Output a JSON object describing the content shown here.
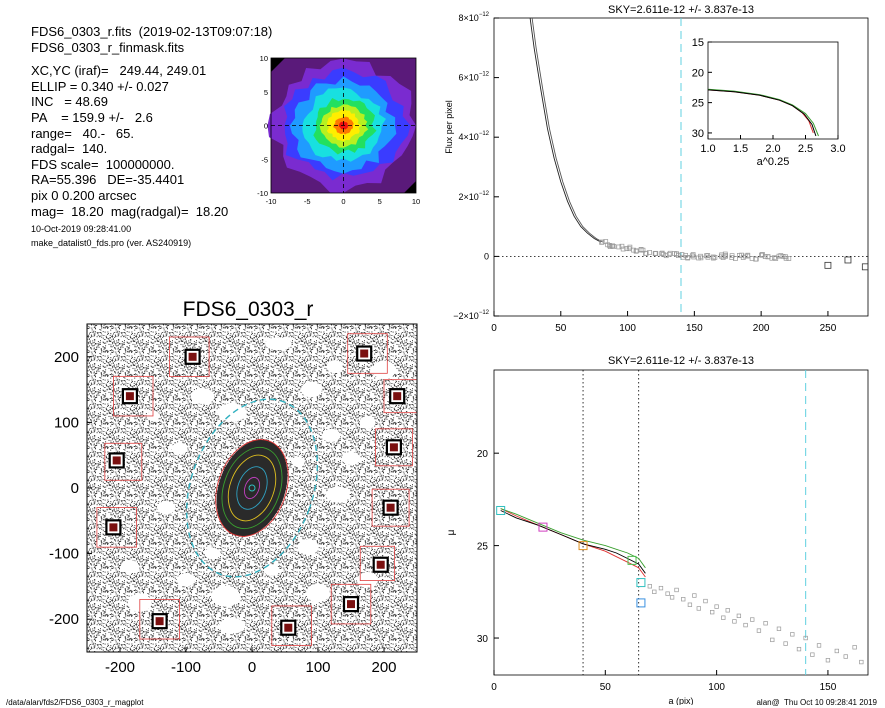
{
  "header": {
    "lines": [
      "FDS6_0303_r.fits  (2019-02-13T09:07:18)",
      "FDS6_0303_r_finmask.fits"
    ],
    "params": [
      "XC,YC (iraf)=   249.44, 249.01",
      "ELLIP = 0.340 +/- 0.027",
      "INC   = 48.69",
      "PA    = 159.9 +/-   2.6",
      "range=   40.-   65.",
      "radgal=  140.",
      "FDS scale=  100000000.",
      "RA=55.396   DE=-35.4401",
      "pix 0 0.200 arcsec",
      "mag=  18.20  mag(radgal)=  18.20"
    ],
    "small": [
      "10-Oct-2019 09:28:41.00",
      "make_datalist0_fds.pro (ver. AS240919)"
    ]
  },
  "footer": {
    "left": "/data/alan/fds2/FDS6_0303_r_magplot",
    "right": "alan@  Thu Oct 10 09:28:41 2019"
  },
  "chart_data": [
    {
      "id": "thumbnail",
      "type": "heatmap",
      "title": "",
      "xlim": [
        -10,
        10
      ],
      "ylim": [
        -10,
        10
      ],
      "xticks": [
        "-10",
        "-5",
        "0",
        "5",
        "10"
      ],
      "yticks": [
        "10",
        "5",
        "0",
        "-5",
        "-10"
      ],
      "levels": [
        {
          "r": 9.5,
          "color": "#7a2bd0"
        },
        {
          "r": 8.2,
          "color": "#3a3cff"
        },
        {
          "r": 6.8,
          "color": "#1f9bff"
        },
        {
          "r": 5.4,
          "color": "#18e0e0"
        },
        {
          "r": 4.1,
          "color": "#22e060"
        },
        {
          "r": 3.1,
          "color": "#b8f020"
        },
        {
          "r": 2.2,
          "color": "#ffee00"
        },
        {
          "r": 1.3,
          "color": "#ff7a00"
        },
        {
          "r": 0.6,
          "color": "#f01010"
        }
      ]
    },
    {
      "id": "image",
      "type": "scatter",
      "title": "FDS6_0303_r",
      "xlim": [
        -250,
        250
      ],
      "ylim": [
        -250,
        250
      ],
      "xticks": [
        "-200",
        "-100",
        "0",
        "100",
        "200"
      ],
      "yticks": [
        "200",
        "100",
        "0",
        "-100",
        "-200"
      ],
      "ellipse": {
        "a": 140,
        "ellip": 0.34,
        "pa": 159.9
      },
      "stars": [
        [
          -90,
          200
        ],
        [
          170,
          205
        ],
        [
          -185,
          140
        ],
        [
          220,
          140
        ],
        [
          -205,
          42
        ],
        [
          215,
          62
        ],
        [
          -210,
          -60
        ],
        [
          210,
          -30
        ],
        [
          195,
          -117
        ],
        [
          150,
          -177
        ],
        [
          -140,
          -203
        ],
        [
          55,
          -213
        ]
      ],
      "masks": [
        [
          -95,
          200,
          30
        ],
        [
          175,
          205,
          30
        ],
        [
          -180,
          140,
          30
        ],
        [
          225,
          140,
          25
        ],
        [
          -195,
          40,
          28
        ],
        [
          215,
          62,
          28
        ],
        [
          -205,
          -60,
          30
        ],
        [
          210,
          -30,
          28
        ],
        [
          190,
          -115,
          26
        ],
        [
          150,
          -177,
          30
        ],
        [
          -140,
          -200,
          30
        ],
        [
          60,
          -210,
          30
        ]
      ]
    },
    {
      "id": "flux",
      "type": "line",
      "title": "SKY=2.611e-12 +/- 3.837e-13",
      "xlabel": "",
      "ylabel": "Flux per pixel",
      "xlim": [
        0,
        280
      ],
      "ylim": [
        -2e-12,
        8e-12
      ],
      "xticks": [
        0,
        50,
        100,
        150,
        200,
        250
      ],
      "yticks": [
        {
          "v": 8e-12,
          "m": "8",
          "e": "−12"
        },
        {
          "v": 6e-12,
          "m": "6",
          "e": "−12"
        },
        {
          "v": 4e-12,
          "m": "4",
          "e": "−12"
        },
        {
          "v": 2e-12,
          "m": "2",
          "e": "−12"
        },
        {
          "v": 0,
          "m": "0",
          "e": ""
        },
        {
          "v": -2e-12,
          "m": "−2",
          "e": "−12"
        }
      ],
      "vline": 140,
      "curve": [
        [
          27,
          8e-12
        ],
        [
          30,
          7e-12
        ],
        [
          35,
          5.6e-12
        ],
        [
          40,
          4.3e-12
        ],
        [
          45,
          3.3e-12
        ],
        [
          50,
          2.5e-12
        ],
        [
          55,
          1.85e-12
        ],
        [
          60,
          1.35e-12
        ],
        [
          65,
          1e-12
        ],
        [
          70,
          7.8e-13
        ],
        [
          75,
          6e-13
        ],
        [
          80,
          4.8e-13
        ]
      ],
      "points": [
        [
          82,
          4.5e-13
        ],
        [
          86,
          3.8e-13
        ],
        [
          90,
          3.5e-13
        ],
        [
          95,
          3e-13
        ],
        [
          100,
          2.8e-13
        ],
        [
          105,
          2.2e-13
        ],
        [
          110,
          1.8e-13
        ],
        [
          115,
          1.5e-13
        ],
        [
          120,
          1.2e-13
        ],
        [
          125,
          1e-13
        ],
        [
          130,
          8e-14
        ],
        [
          135,
          5e-14
        ],
        [
          140,
          3e-14
        ],
        [
          145,
          0.0
        ],
        [
          150,
          2e-14
        ],
        [
          155,
          -2e-14
        ],
        [
          160,
          1e-14
        ],
        [
          165,
          -3e-14
        ],
        [
          170,
          0.0
        ],
        [
          175,
          3e-14
        ],
        [
          180,
          -2e-14
        ],
        [
          185,
          1e-14
        ],
        [
          190,
          0.0
        ],
        [
          195,
          -5e-14
        ],
        [
          200,
          2e-14
        ],
        [
          205,
          4e-14
        ],
        [
          210,
          -1e-14
        ],
        [
          215,
          0.0
        ],
        [
          220,
          -4e-14
        ]
      ],
      "squares": [
        [
          250,
          -3e-13
        ],
        [
          265,
          -1.2e-13
        ],
        [
          278,
          -3.5e-13
        ]
      ],
      "inset": {
        "xlabel": "a^0.25",
        "xlim": [
          1.0,
          3.0
        ],
        "ylim": [
          15,
          31
        ],
        "xticks": [
          "1.0",
          "1.5",
          "2.0",
          "2.5",
          "3.0"
        ],
        "yticks": [
          15,
          20,
          25,
          30
        ],
        "series": [
          {
            "color": "#e03030",
            "values": [
              [
                1.0,
                22.9
              ],
              [
                1.4,
                23.2
              ],
              [
                1.8,
                23.8
              ],
              [
                2.1,
                24.6
              ],
              [
                2.3,
                25.5
              ],
              [
                2.45,
                26.7
              ],
              [
                2.55,
                28.0
              ],
              [
                2.62,
                30.0
              ]
            ]
          },
          {
            "color": "#3aa030",
            "values": [
              [
                1.0,
                22.8
              ],
              [
                1.4,
                23.1
              ],
              [
                1.8,
                23.7
              ],
              [
                2.1,
                24.5
              ],
              [
                2.3,
                25.4
              ],
              [
                2.5,
                26.8
              ],
              [
                2.62,
                28.4
              ],
              [
                2.7,
                30.5
              ]
            ]
          },
          {
            "color": "#000000",
            "values": [
              [
                1.0,
                22.9
              ],
              [
                1.4,
                23.2
              ],
              [
                1.8,
                23.8
              ],
              [
                2.1,
                24.6
              ],
              [
                2.3,
                25.5
              ],
              [
                2.48,
                26.9
              ],
              [
                2.6,
                28.6
              ],
              [
                2.66,
                30.5
              ]
            ]
          }
        ]
      }
    },
    {
      "id": "mu",
      "type": "line",
      "title": "SKY=2.611e-12 +/- 3.837e-13",
      "xlabel": "a (pix)",
      "ylabel": "μ",
      "xlim": [
        0,
        168
      ],
      "ylim": [
        32,
        15.5
      ],
      "xticks": [
        0,
        50,
        100,
        150
      ],
      "yticks": [
        20,
        25,
        30
      ],
      "vlines_dotted": [
        40,
        65
      ],
      "vline": 140,
      "series": [
        {
          "color": "#e03030",
          "values": [
            [
              3,
              23.0
            ],
            [
              10,
              23.4
            ],
            [
              20,
              23.9
            ],
            [
              30,
              24.4
            ],
            [
              40,
              24.9
            ],
            [
              50,
              25.3
            ],
            [
              55,
              25.6
            ],
            [
              60,
              25.9
            ],
            [
              65,
              26.2
            ],
            [
              68,
              26.7
            ]
          ]
        },
        {
          "color": "#3aa030",
          "values": [
            [
              3,
              23.0
            ],
            [
              10,
              23.3
            ],
            [
              20,
              23.8
            ],
            [
              30,
              24.3
            ],
            [
              40,
              24.7
            ],
            [
              50,
              25.0
            ],
            [
              55,
              25.2
            ],
            [
              60,
              25.4
            ],
            [
              65,
              25.7
            ],
            [
              68,
              26.2
            ]
          ]
        },
        {
          "color": "#000000",
          "values": [
            [
              3,
              23.1
            ],
            [
              10,
              23.5
            ],
            [
              20,
              23.9
            ],
            [
              30,
              24.4
            ],
            [
              40,
              24.9
            ],
            [
              50,
              25.2
            ],
            [
              55,
              25.4
            ],
            [
              60,
              25.7
            ],
            [
              65,
              26.0
            ],
            [
              68,
              26.5
            ]
          ]
        }
      ],
      "markers": [
        {
          "x": 3,
          "y": 23.1,
          "color": "#30c0c0"
        },
        {
          "x": 22,
          "y": 24.0,
          "color": "#d040c0"
        },
        {
          "x": 40,
          "y": 25.0,
          "color": "#e09020"
        },
        {
          "x": 62,
          "y": 25.8,
          "color": "#50c050"
        },
        {
          "x": 66,
          "y": 27.0,
          "color": "#30c0c0"
        },
        {
          "x": 66,
          "y": 28.1,
          "color": "#3a90e0"
        }
      ],
      "points": [
        [
          70,
          27.2
        ],
        [
          72,
          27.5
        ],
        [
          75,
          27.3
        ],
        [
          78,
          27.6
        ],
        [
          80,
          27.8
        ],
        [
          82,
          27.4
        ],
        [
          85,
          27.9
        ],
        [
          88,
          28.2
        ],
        [
          90,
          27.7
        ],
        [
          92,
          28.4
        ],
        [
          95,
          28.0
        ],
        [
          98,
          28.6
        ],
        [
          100,
          28.3
        ],
        [
          103,
          28.9
        ],
        [
          105,
          28.5
        ],
        [
          108,
          29.1
        ],
        [
          110,
          28.8
        ],
        [
          113,
          29.3
        ],
        [
          116,
          29.0
        ],
        [
          119,
          29.6
        ],
        [
          122,
          29.2
        ],
        [
          125,
          30.1
        ],
        [
          128,
          29.5
        ],
        [
          131,
          30.3
        ],
        [
          134,
          29.8
        ],
        [
          137,
          30.6
        ],
        [
          140,
          30.0
        ],
        [
          143,
          30.9
        ],
        [
          146,
          30.4
        ],
        [
          150,
          31.2
        ],
        [
          154,
          30.7
        ],
        [
          158,
          31.0
        ],
        [
          162,
          30.5
        ],
        [
          165,
          31.3
        ]
      ]
    }
  ]
}
